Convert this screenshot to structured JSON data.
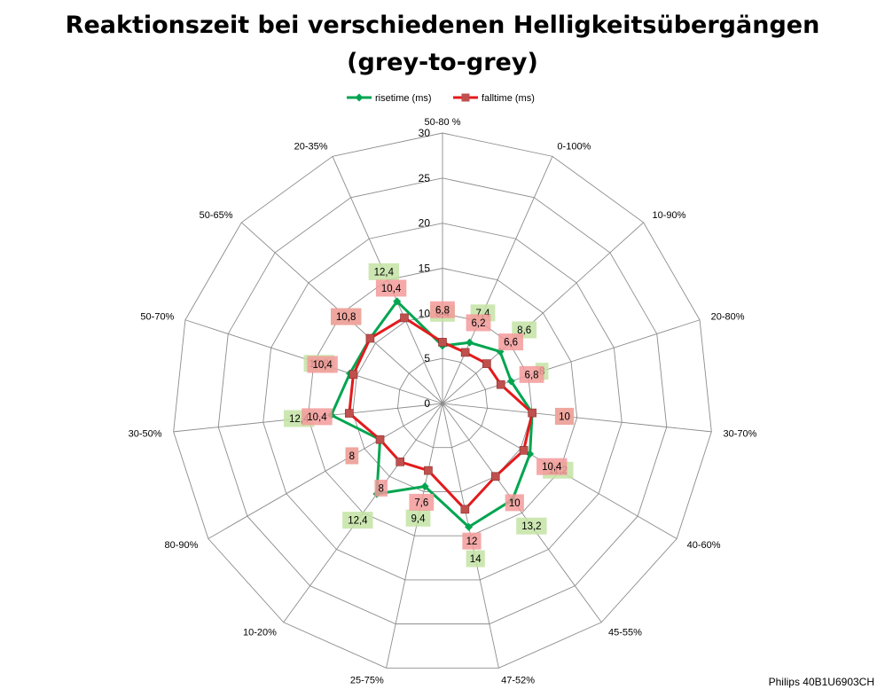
{
  "chart_data": {
    "type": "radar",
    "title_line1": "Reaktionszeit bei verschiedenen Helligkeitsübergängen",
    "title_line2": "(grey-to-grey)",
    "categories": [
      "50-80 %",
      "0-100%",
      "10-90%",
      "20-80%",
      "30-70%",
      "40-60%",
      "45-55%",
      "47-52%",
      "25-75%",
      "10-20%",
      "80-90%",
      "30-50%",
      "50-70%",
      "50-65%",
      "20-35%"
    ],
    "rlim": [
      0,
      30
    ],
    "ticks": [
      0,
      5,
      10,
      15,
      20,
      25,
      30
    ],
    "grid": true,
    "legend_position": "top",
    "series": [
      {
        "name": "risetime (ms)",
        "color": "#00a550",
        "label_bg": "#c4e3a4",
        "marker": "diamond",
        "values": [
          6.4,
          7.4,
          8.6,
          8,
          10,
          11.2,
          13.2,
          14,
          9.4,
          12.4,
          8,
          12.4,
          10.8,
          10.8,
          12.4
        ],
        "labels": [
          "6,4",
          "7,4",
          "8,6",
          "8",
          "10",
          "11,2",
          "13,2",
          "14",
          "9,4",
          "12,4",
          "8",
          "12,4",
          "10,8",
          "10,8",
          "12,4"
        ]
      },
      {
        "name": "falltime (ms)",
        "color": "#e31a1c",
        "label_bg": "#f39a9a",
        "marker": "square",
        "values": [
          6.8,
          6.2,
          6.6,
          6.8,
          10,
          10.4,
          10,
          12,
          7.6,
          8,
          8,
          10.4,
          10.4,
          10.8,
          10.4
        ],
        "labels": [
          "6,8",
          "6,2",
          "6,6",
          "6,8",
          "10",
          "10,4",
          "10",
          "12",
          "7,6",
          "8",
          "8",
          "10,4",
          "10,4",
          "10,8",
          "10,4"
        ]
      }
    ]
  },
  "footer": {
    "credit": "Philips 40B1U6903CH"
  }
}
